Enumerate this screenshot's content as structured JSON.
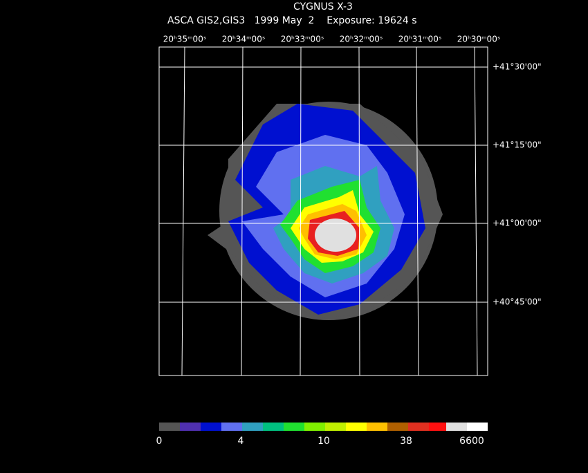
{
  "header": {
    "title": "CYGNUS X-3",
    "subtitle": "ASCA GIS2,GIS3   1999 May  2    Exposure: 19624 s"
  },
  "ra_labels": [
    "20ʰ35ᵐ00ˢ",
    "20ʰ34ᵐ00ˢ",
    "20ʰ33ᵐ00ˢ",
    "20ʰ32ᵐ00ˢ",
    "20ʰ31ᵐ00ˢ",
    "20ʰ30ᵐ00ˢ"
  ],
  "dec_labels": [
    "+41°30'00\"",
    "+41°15'00\"",
    "+41°00'00\"",
    "+40°45'00\""
  ],
  "colorbar_labels": [
    "0",
    "4",
    "10",
    "38",
    "6600"
  ]
}
